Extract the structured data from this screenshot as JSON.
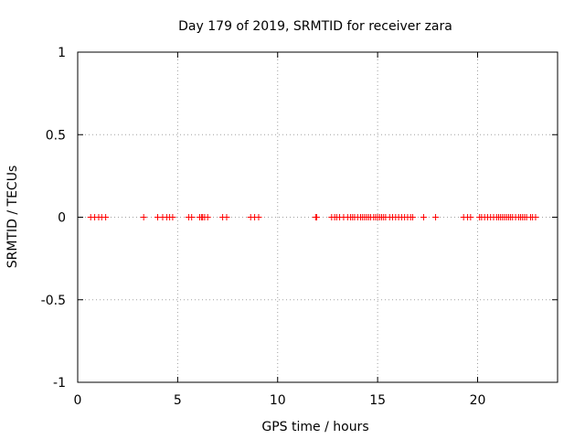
{
  "chart_data": {
    "type": "scatter",
    "title": "Day 179 of 2019, SRMTID for receiver zara",
    "xlabel": "GPS time / hours",
    "ylabel": "SRMTID / TECUs",
    "xlim": [
      0,
      24
    ],
    "ylim": [
      -1,
      1
    ],
    "grid": true,
    "x_ticks": [
      0,
      5,
      10,
      15,
      20
    ],
    "x_tick_labels": [
      "0",
      "5",
      "10",
      "15",
      "20"
    ],
    "y_ticks": [
      1,
      0.5,
      0,
      -0.5,
      -1
    ],
    "y_tick_labels": [
      "1",
      "0.5",
      "0",
      "-0.5",
      "-1"
    ],
    "marker": "+",
    "marker_color": "#ff0000",
    "series": [
      {
        "name": "SRMTID",
        "x": [
          0.65,
          0.85,
          1.05,
          1.2,
          1.4,
          3.3,
          4.0,
          4.25,
          4.45,
          4.6,
          4.75,
          5.55,
          5.7,
          6.1,
          6.2,
          6.25,
          6.35,
          6.5,
          7.25,
          7.45,
          8.65,
          8.85,
          9.05,
          11.9,
          11.95,
          12.7,
          12.85,
          12.95,
          13.1,
          13.3,
          13.5,
          13.65,
          13.75,
          13.85,
          14.0,
          14.15,
          14.25,
          14.35,
          14.45,
          14.55,
          14.65,
          14.8,
          14.9,
          15.0,
          15.1,
          15.2,
          15.3,
          15.4,
          15.6,
          15.75,
          15.9,
          16.05,
          16.2,
          16.35,
          16.5,
          16.65,
          16.75,
          17.3,
          17.9,
          19.3,
          19.5,
          19.65,
          20.1,
          20.2,
          20.35,
          20.5,
          20.65,
          20.8,
          20.95,
          21.05,
          21.15,
          21.25,
          21.35,
          21.45,
          21.55,
          21.65,
          21.75,
          21.9,
          22.05,
          22.15,
          22.25,
          22.35,
          22.45,
          22.65,
          22.75,
          22.9
        ],
        "y": [
          0,
          0,
          0,
          0,
          0,
          0,
          0,
          0,
          0,
          0,
          0,
          0,
          0,
          0,
          0,
          0,
          0,
          0,
          0,
          0,
          0,
          0,
          0,
          0,
          0,
          0,
          0,
          0,
          0,
          0,
          0,
          0,
          0,
          0,
          0,
          0,
          0,
          0,
          0,
          0,
          0,
          0,
          0,
          0,
          0,
          0,
          0,
          0,
          0,
          0,
          0,
          0,
          0,
          0,
          0,
          0,
          0,
          0,
          0,
          0,
          0,
          0,
          0,
          0,
          0,
          0,
          0,
          0,
          0,
          0,
          0,
          0,
          0,
          0,
          0,
          0,
          0,
          0,
          0,
          0,
          0,
          0,
          0,
          0,
          0,
          0
        ]
      }
    ]
  }
}
